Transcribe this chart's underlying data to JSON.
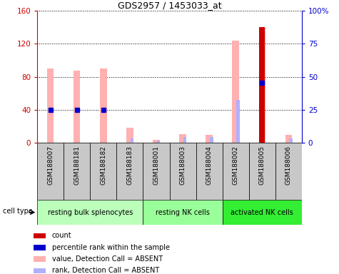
{
  "title": "GDS2957 / 1453033_at",
  "samples": [
    "GSM188007",
    "GSM188181",
    "GSM188182",
    "GSM188183",
    "GSM188001",
    "GSM188003",
    "GSM188004",
    "GSM188002",
    "GSM188005",
    "GSM188006"
  ],
  "cell_types": [
    {
      "label": "resting bulk splenocytes",
      "start": 0,
      "end": 3,
      "color": "#bbffbb"
    },
    {
      "label": "resting NK cells",
      "start": 4,
      "end": 6,
      "color": "#99ff99"
    },
    {
      "label": "activated NK cells",
      "start": 7,
      "end": 9,
      "color": "#33ee33"
    }
  ],
  "pink_bars": [
    90,
    87,
    90,
    18,
    3,
    10,
    9,
    124,
    140,
    9
  ],
  "light_blue_bars": [
    0,
    0,
    0,
    5,
    2,
    7,
    7,
    52,
    0,
    5
  ],
  "red_bars": [
    0,
    0,
    0,
    0,
    0,
    0,
    0,
    0,
    140,
    0
  ],
  "blue_dot_heights": [
    40,
    40,
    40,
    0,
    0,
    0,
    0,
    0,
    73,
    0
  ],
  "ylim_left": [
    0,
    160
  ],
  "ylim_right": [
    0,
    100
  ],
  "yticks_left": [
    0,
    40,
    80,
    120,
    160
  ],
  "yticks_right": [
    0,
    25,
    50,
    75,
    100
  ],
  "yticklabels_right": [
    "0",
    "25",
    "50",
    "75",
    "100%"
  ],
  "legend_items": [
    {
      "color": "#cc0000",
      "label": "count"
    },
    {
      "color": "#0000cc",
      "label": "percentile rank within the sample"
    },
    {
      "color": "#ffb0b0",
      "label": "value, Detection Call = ABSENT"
    },
    {
      "color": "#b0b0ff",
      "label": "rank, Detection Call = ABSENT"
    }
  ],
  "background_color": "#ffffff",
  "tick_label_color_left": "#cc0000",
  "tick_label_color_right": "#0000cc",
  "cell_type_label": "cell type"
}
